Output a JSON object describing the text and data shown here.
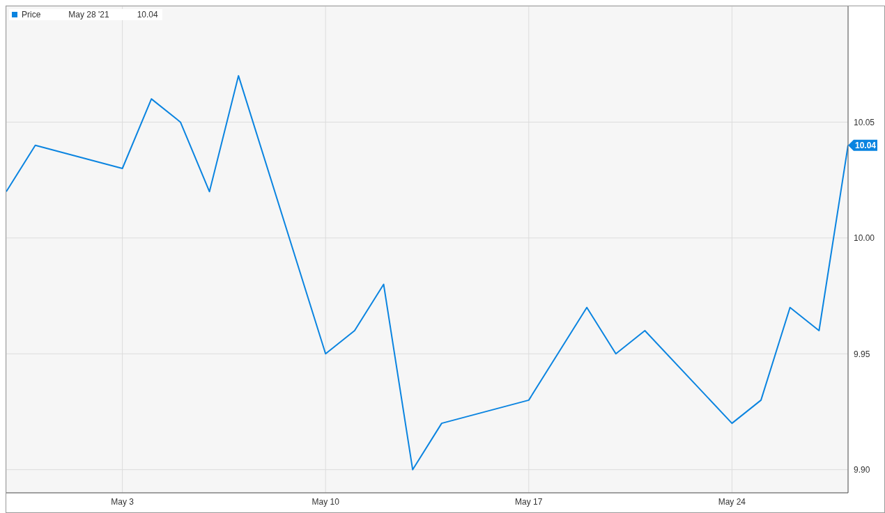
{
  "chart_data": {
    "type": "line",
    "x": [
      "2021-04-29",
      "2021-04-30",
      "2021-05-03",
      "2021-05-04",
      "2021-05-05",
      "2021-05-06",
      "2021-05-07",
      "2021-05-10",
      "2021-05-11",
      "2021-05-12",
      "2021-05-13",
      "2021-05-14",
      "2021-05-17",
      "2021-05-18",
      "2021-05-19",
      "2021-05-20",
      "2021-05-21",
      "2021-05-24",
      "2021-05-25",
      "2021-05-26",
      "2021-05-27",
      "2021-05-28"
    ],
    "series": [
      {
        "name": "Price",
        "color": "#0a84e0",
        "values": [
          10.02,
          10.04,
          10.03,
          10.06,
          10.05,
          10.02,
          10.07,
          9.95,
          9.96,
          9.98,
          9.9,
          9.92,
          9.93,
          9.95,
          9.97,
          9.95,
          9.96,
          9.92,
          9.93,
          9.97,
          9.96,
          10.04
        ]
      }
    ],
    "xlim": [
      "2021-04-29",
      "2021-05-28"
    ],
    "xticks": [
      {
        "value": "2021-05-03",
        "label": "May 3"
      },
      {
        "value": "2021-05-10",
        "label": "May 10"
      },
      {
        "value": "2021-05-17",
        "label": "May 17"
      },
      {
        "value": "2021-05-24",
        "label": "May 24"
      }
    ],
    "ylim": [
      9.89,
      10.1
    ],
    "yticks": [
      {
        "value": 9.9,
        "label": "9.90"
      },
      {
        "value": 9.95,
        "label": "9.95"
      },
      {
        "value": 10.0,
        "label": "10.00"
      },
      {
        "value": 10.05,
        "label": "10.05"
      }
    ],
    "grid": true,
    "legend": "top left",
    "marker": "none",
    "line_style": "solid",
    "annotations": [
      "May 28 '21",
      "10.04",
      {
        "text": "10.04",
        "x": "2021-05-28",
        "y": 10.04
      }
    ]
  }
}
